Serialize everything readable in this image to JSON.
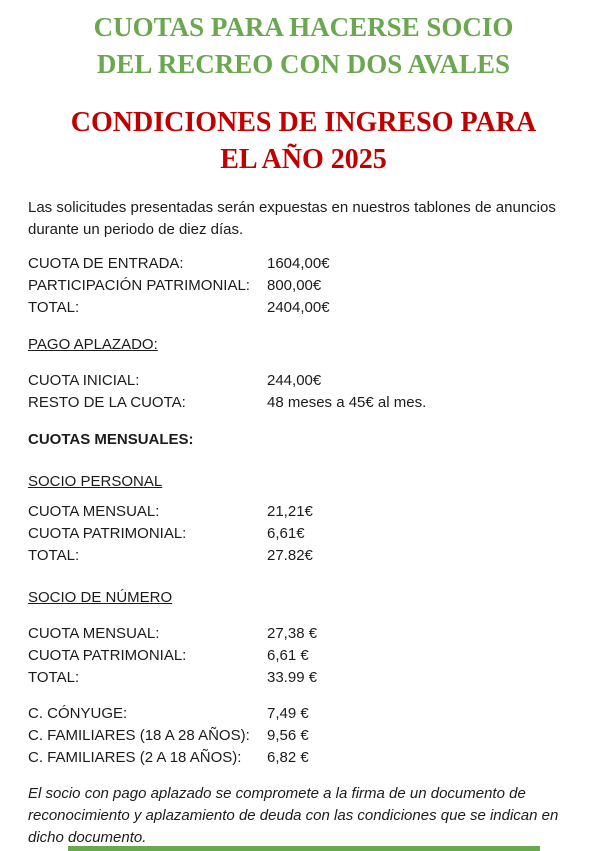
{
  "titles": {
    "main": {
      "line1": "CUOTAS PARA HACERSE SOCIO",
      "line2": "DEL RECREO CON DOS AVALES",
      "color": "#6aa84f"
    },
    "sub": {
      "line1": "CONDICIONES DE INGRESO PARA",
      "line2": "EL AÑO 2025",
      "color": "#c00000"
    }
  },
  "intro": "Las solicitudes presentadas serán expuestas en nuestros tablones de anuncios durante un periodo de diez días.",
  "entrada": {
    "rows": [
      {
        "label": "CUOTA DE ENTRADA:",
        "value": "1604,00€"
      },
      {
        "label": "PARTICIPACIÓN PATRIMONIAL:",
        "value": "800,00€"
      },
      {
        "label": "TOTAL:",
        "value": "2404,00€"
      }
    ]
  },
  "pago_aplazado": {
    "heading": "PAGO APLAZADO:",
    "rows": [
      {
        "label": "CUOTA INICIAL:",
        "value": "244,00€"
      },
      {
        "label": "RESTO DE LA CUOTA:",
        "value": "48 meses a 45€ al mes."
      }
    ]
  },
  "cuotas_mensuales": {
    "heading": "CUOTAS MENSUALES:"
  },
  "socio_personal": {
    "heading": "SOCIO PERSONAL",
    "rows": [
      {
        "label": "CUOTA MENSUAL:",
        "value": "21,21€"
      },
      {
        "label": "CUOTA PATRIMONIAL:",
        "value": "6,61€"
      },
      {
        "label": "TOTAL:",
        "value": "27.82€"
      }
    ]
  },
  "socio_numero": {
    "heading": "SOCIO DE NÚMERO",
    "rows": [
      {
        "label": "CUOTA MENSUAL:",
        "value": "27,38 €"
      },
      {
        "label": "CUOTA PATRIMONIAL:",
        "value": "6,61 €"
      },
      {
        "label": "TOTAL:",
        "value": "33.99 €"
      }
    ],
    "familiares_rows": [
      {
        "label": "C. CÓNYUGE:",
        "value": "7,49 €"
      },
      {
        "label": "C. FAMILIARES (18 A 28 AÑOS):",
        "value": "9,56 €"
      },
      {
        "label": "C. FAMILIARES (2 A 18 AÑOS):",
        "value": "6,82 €"
      }
    ]
  },
  "footer_note": "El socio con pago aplazado se compromete a la firma de un documento de reconocimiento y aplazamiento de deuda con las condiciones que se indican en dicho documento.",
  "colors": {
    "title_green": "#6aa84f",
    "title_red": "#c00000",
    "body_text": "#1c1c1c",
    "bottom_bar": "#6aa84f"
  }
}
